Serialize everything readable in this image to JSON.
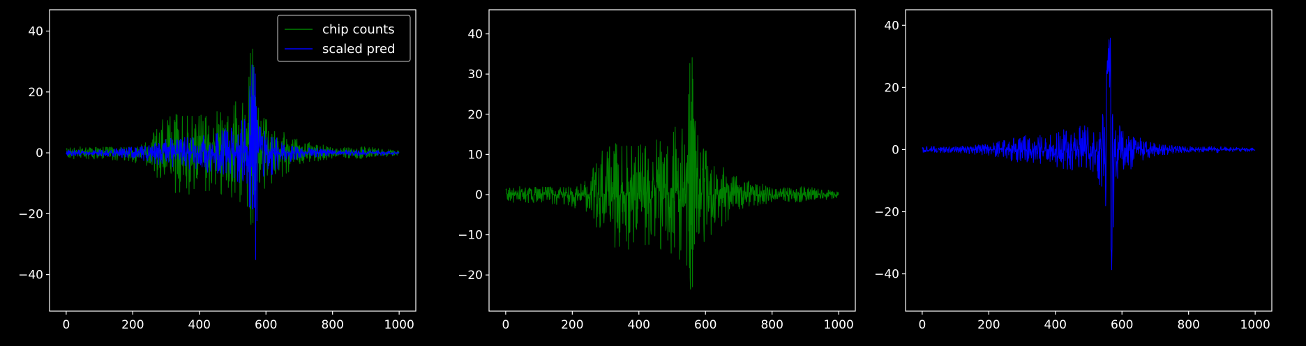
{
  "chart_data": [
    {
      "type": "line",
      "title": "",
      "xlabel": "",
      "ylabel": "",
      "xlim": [
        -50,
        1050
      ],
      "ylim": [
        -52,
        47
      ],
      "xticks": [
        0,
        200,
        400,
        600,
        800,
        1000
      ],
      "yticks": [
        -40,
        -20,
        0,
        20,
        40
      ],
      "grid": false,
      "legend": {
        "placement": "top-right",
        "entries": [
          "chip counts",
          "scaled pred"
        ]
      },
      "series": [
        {
          "name": "chip counts",
          "color": "#008000",
          "envelope": {
            "x": [
              0,
              100,
              200,
              250,
              300,
              350,
              400,
              450,
              500,
              540,
              550,
              558,
              565,
              580,
              600,
              650,
              700,
              800,
              900,
              1000
            ],
            "upper": [
              2,
              2,
              2,
              5,
              14,
              12,
              13,
              14,
              16,
              20,
              30,
              43,
              20,
              17,
              12,
              8,
              4,
              2,
              2,
              1
            ],
            "lower": [
              -2,
              -2,
              -3,
              -5,
              -12,
              -14,
              -13,
              -13,
              -15,
              -18,
              -22,
              -26,
              -19,
              -17,
              -13,
              -8,
              -4,
              -2,
              -2,
              -1
            ]
          }
        },
        {
          "name": "scaled pred",
          "color": "#0000ff",
          "envelope": {
            "x": [
              0,
              100,
              200,
              250,
              300,
              350,
              400,
              450,
              500,
              540,
              550,
              560,
              565,
              570,
              575,
              580,
              600,
              650,
              700,
              800,
              900,
              1000
            ],
            "upper": [
              1,
              1,
              2,
              3,
              5,
              5,
              6,
              7,
              9,
              13,
              20,
              36,
              41,
              30,
              15,
              10,
              7,
              4,
              2,
              1,
              1,
              0.5
            ],
            "lower": [
              -1,
              -1,
              -2,
              -3,
              -5,
              -5,
              -6,
              -7,
              -8,
              -12,
              -18,
              -22,
              -30,
              -47,
              -25,
              -15,
              -9,
              -4,
              -2,
              -1,
              -1,
              -0.5
            ]
          }
        }
      ]
    },
    {
      "type": "line",
      "title": "",
      "xlabel": "",
      "ylabel": "",
      "xlim": [
        -50,
        1050
      ],
      "ylim": [
        -29,
        46
      ],
      "xticks": [
        0,
        200,
        400,
        600,
        800,
        1000
      ],
      "yticks": [
        -20,
        -10,
        0,
        10,
        20,
        30,
        40
      ],
      "grid": false,
      "series": [
        {
          "color": "#008000",
          "envelope": {
            "x": [
              0,
              100,
              200,
              250,
              300,
              350,
              400,
              450,
              500,
              540,
              550,
              558,
              565,
              580,
              600,
              650,
              700,
              800,
              900,
              1000
            ],
            "upper": [
              2,
              2,
              2,
              5,
              14,
              12,
              13,
              14,
              16,
              20,
              30,
              43,
              20,
              17,
              12,
              8,
              4,
              2,
              2,
              1
            ],
            "lower": [
              -2,
              -2,
              -3,
              -5,
              -12,
              -14,
              -13,
              -13,
              -15,
              -18,
              -22,
              -26,
              -19,
              -17,
              -13,
              -8,
              -4,
              -2,
              -2,
              -1
            ]
          }
        }
      ]
    },
    {
      "type": "line",
      "title": "",
      "xlabel": "",
      "ylabel": "",
      "xlim": [
        -50,
        1050
      ],
      "ylim": [
        -52,
        45
      ],
      "xticks": [
        0,
        200,
        400,
        600,
        800,
        1000
      ],
      "yticks": [
        -40,
        -20,
        0,
        20,
        40
      ],
      "grid": false,
      "series": [
        {
          "color": "#0000ff",
          "envelope": {
            "x": [
              0,
              100,
              200,
              250,
              300,
              350,
              400,
              450,
              500,
              540,
              550,
              560,
              565,
              570,
              575,
              580,
              600,
              650,
              700,
              800,
              900,
              1000
            ],
            "upper": [
              1,
              1,
              2,
              3,
              5,
              5,
              6,
              7,
              9,
              13,
              20,
              36,
              41,
              30,
              15,
              10,
              7,
              4,
              2,
              1,
              1,
              0.5
            ],
            "lower": [
              -1,
              -1,
              -2,
              -3,
              -5,
              -5,
              -6,
              -7,
              -8,
              -12,
              -18,
              -22,
              -30,
              -47,
              -25,
              -15,
              -9,
              -4,
              -2,
              -1,
              -1,
              -0.5
            ]
          }
        }
      ]
    }
  ]
}
